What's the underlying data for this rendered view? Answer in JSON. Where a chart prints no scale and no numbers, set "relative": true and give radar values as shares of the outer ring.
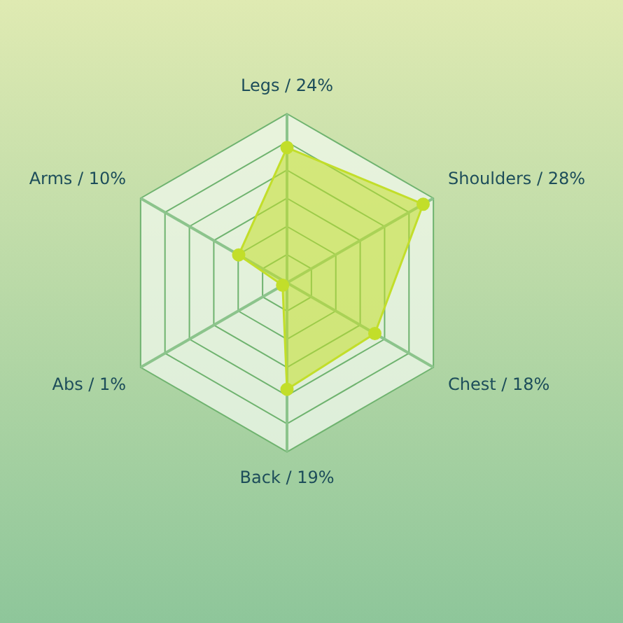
{
  "chart_data": {
    "type": "radar",
    "categories": [
      "Legs / 24%",
      "Shoulders / 28%",
      "Chest / 18%",
      "Back / 19%",
      "Abs / 1%",
      "Arms / 10%"
    ],
    "series": [
      {
        "color": "#c2de2a",
        "values": [
          0.8,
          0.93,
          0.6,
          0.63,
          0.03,
          0.33
        ]
      }
    ],
    "relative": true,
    "grid": true,
    "legend": false,
    "marker": "circle"
  }
}
